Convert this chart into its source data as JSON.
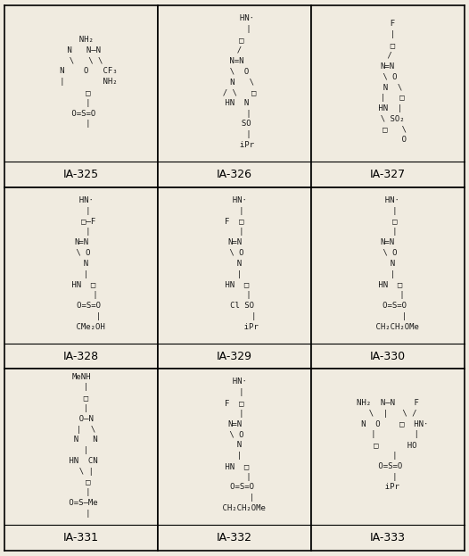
{
  "grid_rows": 3,
  "grid_cols": 3,
  "labels": [
    "IA-325",
    "IA-326",
    "IA-327",
    "IA-328",
    "IA-329",
    "IA-330",
    "IA-331",
    "IA-332",
    "IA-333"
  ],
  "background_color": "#f0ebe0",
  "border_color": "#000000",
  "label_fontsize": 9,
  "fig_width": 5.26,
  "fig_height": 6.23,
  "structures_text": [
    "  NH₂\n N   N—N\n  \\   \\ \\\n   N    O   CF₃\n   |        NH₂\n   □\n   |\n O=S=O\n   |",
    "     HN·\n      |\n   □\n  /\n N=N\n  \\  O\n   N   \\\n  / \\   □\n HN  N\n      |\n     SO\n      |\n     iPr",
    "  F\n  |\n  □\n /\nN=N\n \\ O\n  N  \\\n  |   □\n HN  |\n  \\ SO₂\n   □   \\\n       O",
    "  HN·\n   |\n   □—F\n   |\nN=N\n \\ O\n  N\n  |\n HN  □\n      |\n   O=S=O\n       |\n    CMe₂OH",
    "  HN·\n   |\nF  □\n   |\nN=N\n \\ O\n  N\n  |\n HN  □\n      |\n   Cl SO\n        |\n       iPr",
    "  HN·\n   |\n   □\n   |\nN=N\n \\ O\n  N\n  |\n HN  □\n      |\n   O=S=O\n       |\n    CH₂CH₂OMe",
    "MeNH\n  |\n  □\n  |\n  O—N\n  |  \\\n  N   N\n  |\n HN  CN\n  \\ |\n   □\n   |\n O=S—Me\n   |",
    "  HN·\n   |\nF  □\n   |\nN=N\n \\ O\n  N\n  |\n HN  □\n      |\n   O=S=O\n       |\n    CH₂CH₂OMe",
    "NH₂  N—N    F\n  \\  |   \\ /\n   N  O    □  HN·\n   |        |\n   □      HO\n   |\n O=S=O\n   |\n  iPr"
  ]
}
